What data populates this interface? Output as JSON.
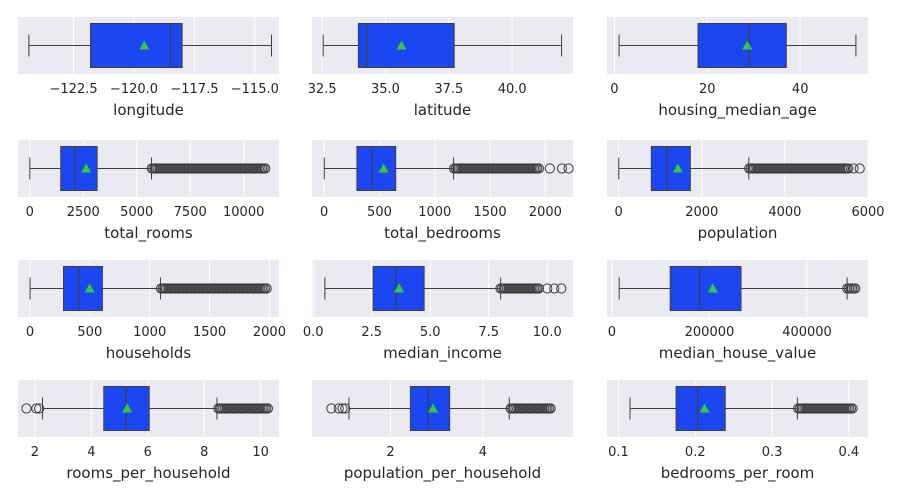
{
  "chart_data": [
    {
      "type": "box",
      "xlabel": "longitude",
      "xlim": [
        -124.8,
        -114.0
      ],
      "ticks": [
        -122.5,
        -120.0,
        -117.5,
        -115.0
      ],
      "tick_labels": [
        "−122.5",
        "−120.0",
        "−117.5",
        "−115.0"
      ],
      "whisker_low": -124.35,
      "q1": -121.8,
      "median": -118.49,
      "q3": -118.01,
      "whisker_high": -114.31,
      "mean": -119.57,
      "outliers": []
    },
    {
      "type": "box",
      "xlabel": "latitude",
      "xlim": [
        32.1,
        42.4
      ],
      "ticks": [
        32.5,
        35.0,
        37.5,
        40.0
      ],
      "tick_labels": [
        "32.5",
        "35.0",
        "37.5",
        "40.0"
      ],
      "whisker_low": 32.54,
      "q1": 33.93,
      "median": 34.26,
      "q3": 37.71,
      "whisker_high": 41.95,
      "mean": 35.63,
      "outliers": []
    },
    {
      "type": "box",
      "xlabel": "housing_median_age",
      "xlim": [
        -1.6,
        54.6
      ],
      "ticks": [
        0,
        20,
        40
      ],
      "tick_labels": [
        "0",
        "20",
        "40"
      ],
      "whisker_low": 1,
      "q1": 18,
      "median": 29,
      "q3": 37,
      "whisker_high": 52,
      "mean": 28.6,
      "outliers": []
    },
    {
      "type": "box",
      "xlabel": "total_rooms",
      "xlim": [
        -550,
        11650
      ],
      "ticks": [
        0,
        2500,
        5000,
        7500,
        10000
      ],
      "tick_labels": [
        "0",
        "2500",
        "5000",
        "7500",
        "10000"
      ],
      "whisker_low": 2,
      "q1": 1448,
      "median": 2127,
      "q3": 3148,
      "whisker_high": 5690,
      "mean": 2636,
      "outliers_dense": [
        5700,
        11050
      ],
      "outliers": []
    },
    {
      "type": "box",
      "xlabel": "total_bedrooms",
      "xlim": [
        -110,
        2250
      ],
      "ticks": [
        0,
        500,
        1000,
        1500,
        2000
      ],
      "tick_labels": [
        "0",
        "500",
        "1000",
        "1500",
        "2000"
      ],
      "whisker_low": 1,
      "q1": 296,
      "median": 435,
      "q3": 647,
      "whisker_high": 1170,
      "mean": 538,
      "outliers_dense": [
        1175,
        1950
      ],
      "outliers": [
        2040,
        2150,
        2210
      ]
    },
    {
      "type": "box",
      "xlabel": "population",
      "xlim": [
        -280,
        6000
      ],
      "ticks": [
        0,
        2000,
        4000,
        6000
      ],
      "tick_labels": [
        "0",
        "2000",
        "4000",
        "6000"
      ],
      "whisker_low": 3,
      "q1": 787,
      "median": 1166,
      "q3": 1725,
      "whisker_high": 3132,
      "mean": 1425,
      "outliers_dense": [
        3140,
        5550
      ],
      "outliers": [
        5650,
        5800
      ]
    },
    {
      "type": "box",
      "xlabel": "households",
      "xlim": [
        -100,
        2080
      ],
      "ticks": [
        0,
        500,
        1000,
        1500,
        2000
      ],
      "tick_labels": [
        "0",
        "500",
        "1000",
        "1500",
        "2000"
      ],
      "whisker_low": 1,
      "q1": 280,
      "median": 409,
      "q3": 605,
      "whisker_high": 1090,
      "mean": 499,
      "outliers_dense": [
        1095,
        1990
      ],
      "outliers": []
    },
    {
      "type": "box",
      "xlabel": "median_income",
      "xlim": [
        -0.05,
        11.1
      ],
      "ticks": [
        0.0,
        2.5,
        5.0,
        7.5,
        10.0
      ],
      "tick_labels": [
        "0.0",
        "2.5",
        "5.0",
        "7.5",
        "10.0"
      ],
      "whisker_low": 0.5,
      "q1": 2.56,
      "median": 3.53,
      "q3": 4.74,
      "whisker_high": 8.01,
      "mean": 3.67,
      "outliers_dense": [
        8.0,
        9.7
      ],
      "outliers": [
        10.0,
        10.3,
        10.6
      ]
    },
    {
      "type": "box",
      "xlabel": "median_house_value",
      "xlim": [
        -10000,
        525000
      ],
      "ticks": [
        0,
        200000,
        400000
      ],
      "tick_labels": [
        "0",
        "200000",
        "400000"
      ],
      "whisker_low": 14999,
      "q1": 119600,
      "median": 179700,
      "q3": 264725,
      "whisker_high": 482200,
      "mean": 206856,
      "outliers_dense": [
        482500,
        500001
      ],
      "outliers": []
    },
    {
      "type": "box",
      "xlabel": "rooms_per_household",
      "xlim": [
        1.4,
        10.65
      ],
      "ticks": [
        2,
        4,
        6,
        8,
        10
      ],
      "tick_labels": [
        "2",
        "4",
        "6",
        "8",
        "10"
      ],
      "whisker_low": 2.27,
      "q1": 4.44,
      "median": 5.23,
      "q3": 6.05,
      "whisker_high": 8.45,
      "mean": 5.27,
      "outliers_dense": [
        8.5,
        10.3
      ],
      "outliers": [
        1.7,
        2.05,
        2.15
      ]
    },
    {
      "type": "box",
      "xlabel": "population_per_household",
      "xlim": [
        0.3,
        5.95
      ],
      "ticks": [
        2,
        4
      ],
      "tick_labels": [
        "2",
        "4"
      ],
      "whisker_low": 1.1,
      "q1": 2.43,
      "median": 2.82,
      "q3": 3.28,
      "whisker_high": 4.57,
      "mean": 2.92,
      "outliers_dense": [
        4.6,
        5.5
      ],
      "outliers": [
        0.72,
        0.88,
        0.96,
        1.02
      ]
    },
    {
      "type": "box",
      "xlabel": "bedrooms_per_room",
      "xlim": [
        0.085,
        0.425
      ],
      "ticks": [
        0.1,
        0.2,
        0.3,
        0.4
      ],
      "tick_labels": [
        "0.1",
        "0.2",
        "0.3",
        "0.4"
      ],
      "whisker_low": 0.115,
      "q1": 0.175,
      "median": 0.203,
      "q3": 0.239,
      "whisker_high": 0.333,
      "mean": 0.212,
      "outliers_dense": [
        0.334,
        0.405
      ],
      "outliers": []
    }
  ],
  "colors": {
    "axes_bg": "#eaeaf2",
    "grid": "#ffffff",
    "box_fill": "#1c46f2",
    "edge": "#3f3f3f",
    "mean_marker": "#2ecc40",
    "text": "#262626"
  }
}
